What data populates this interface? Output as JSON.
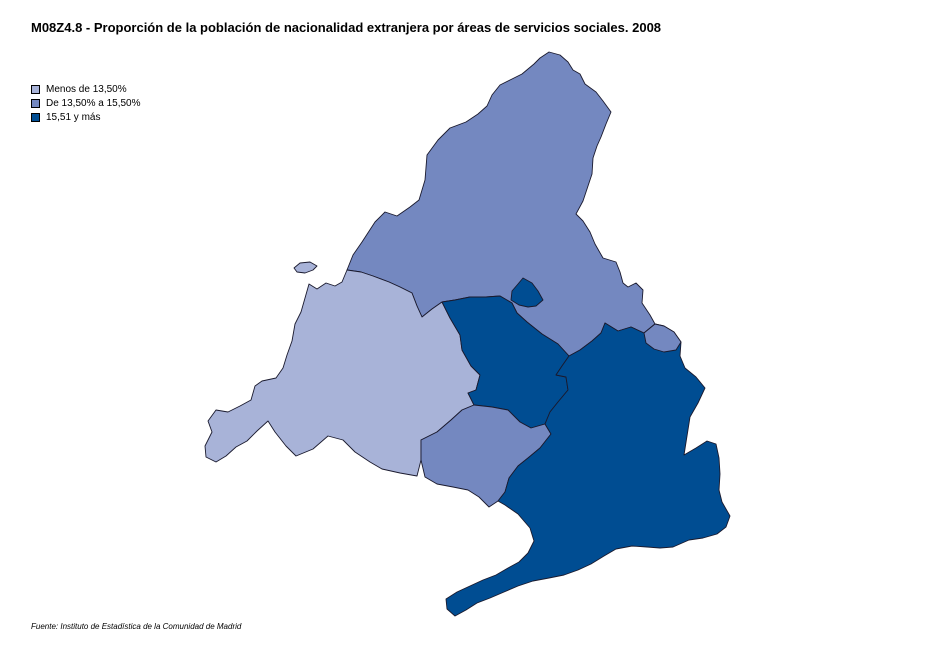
{
  "title": "M08Z4.8 - Proporción de la población de nacionalidad extranjera por áreas de servicios sociales. 2008",
  "legend": [
    {
      "label": "Menos de 13,50%",
      "color": "#a8b3d8"
    },
    {
      "label": "De 13,50% a 15,50%",
      "color": "#7488c0"
    },
    {
      "label": "15,51 y más",
      "color": "#004d92"
    }
  ],
  "map": {
    "regions": [
      {
        "name": "norte",
        "class": 1
      },
      {
        "name": "oeste",
        "class": 0
      },
      {
        "name": "centro",
        "class": 2
      },
      {
        "name": "sur",
        "class": 1
      },
      {
        "name": "este-sur",
        "class": 2
      },
      {
        "name": "enclave-norte",
        "class": 2
      },
      {
        "name": "isla-noroeste",
        "class": 0
      },
      {
        "name": "enclave-este",
        "class": 1
      }
    ]
  },
  "source": "Fuente: Instituto de Estadística de la Comunidad de Madrid"
}
